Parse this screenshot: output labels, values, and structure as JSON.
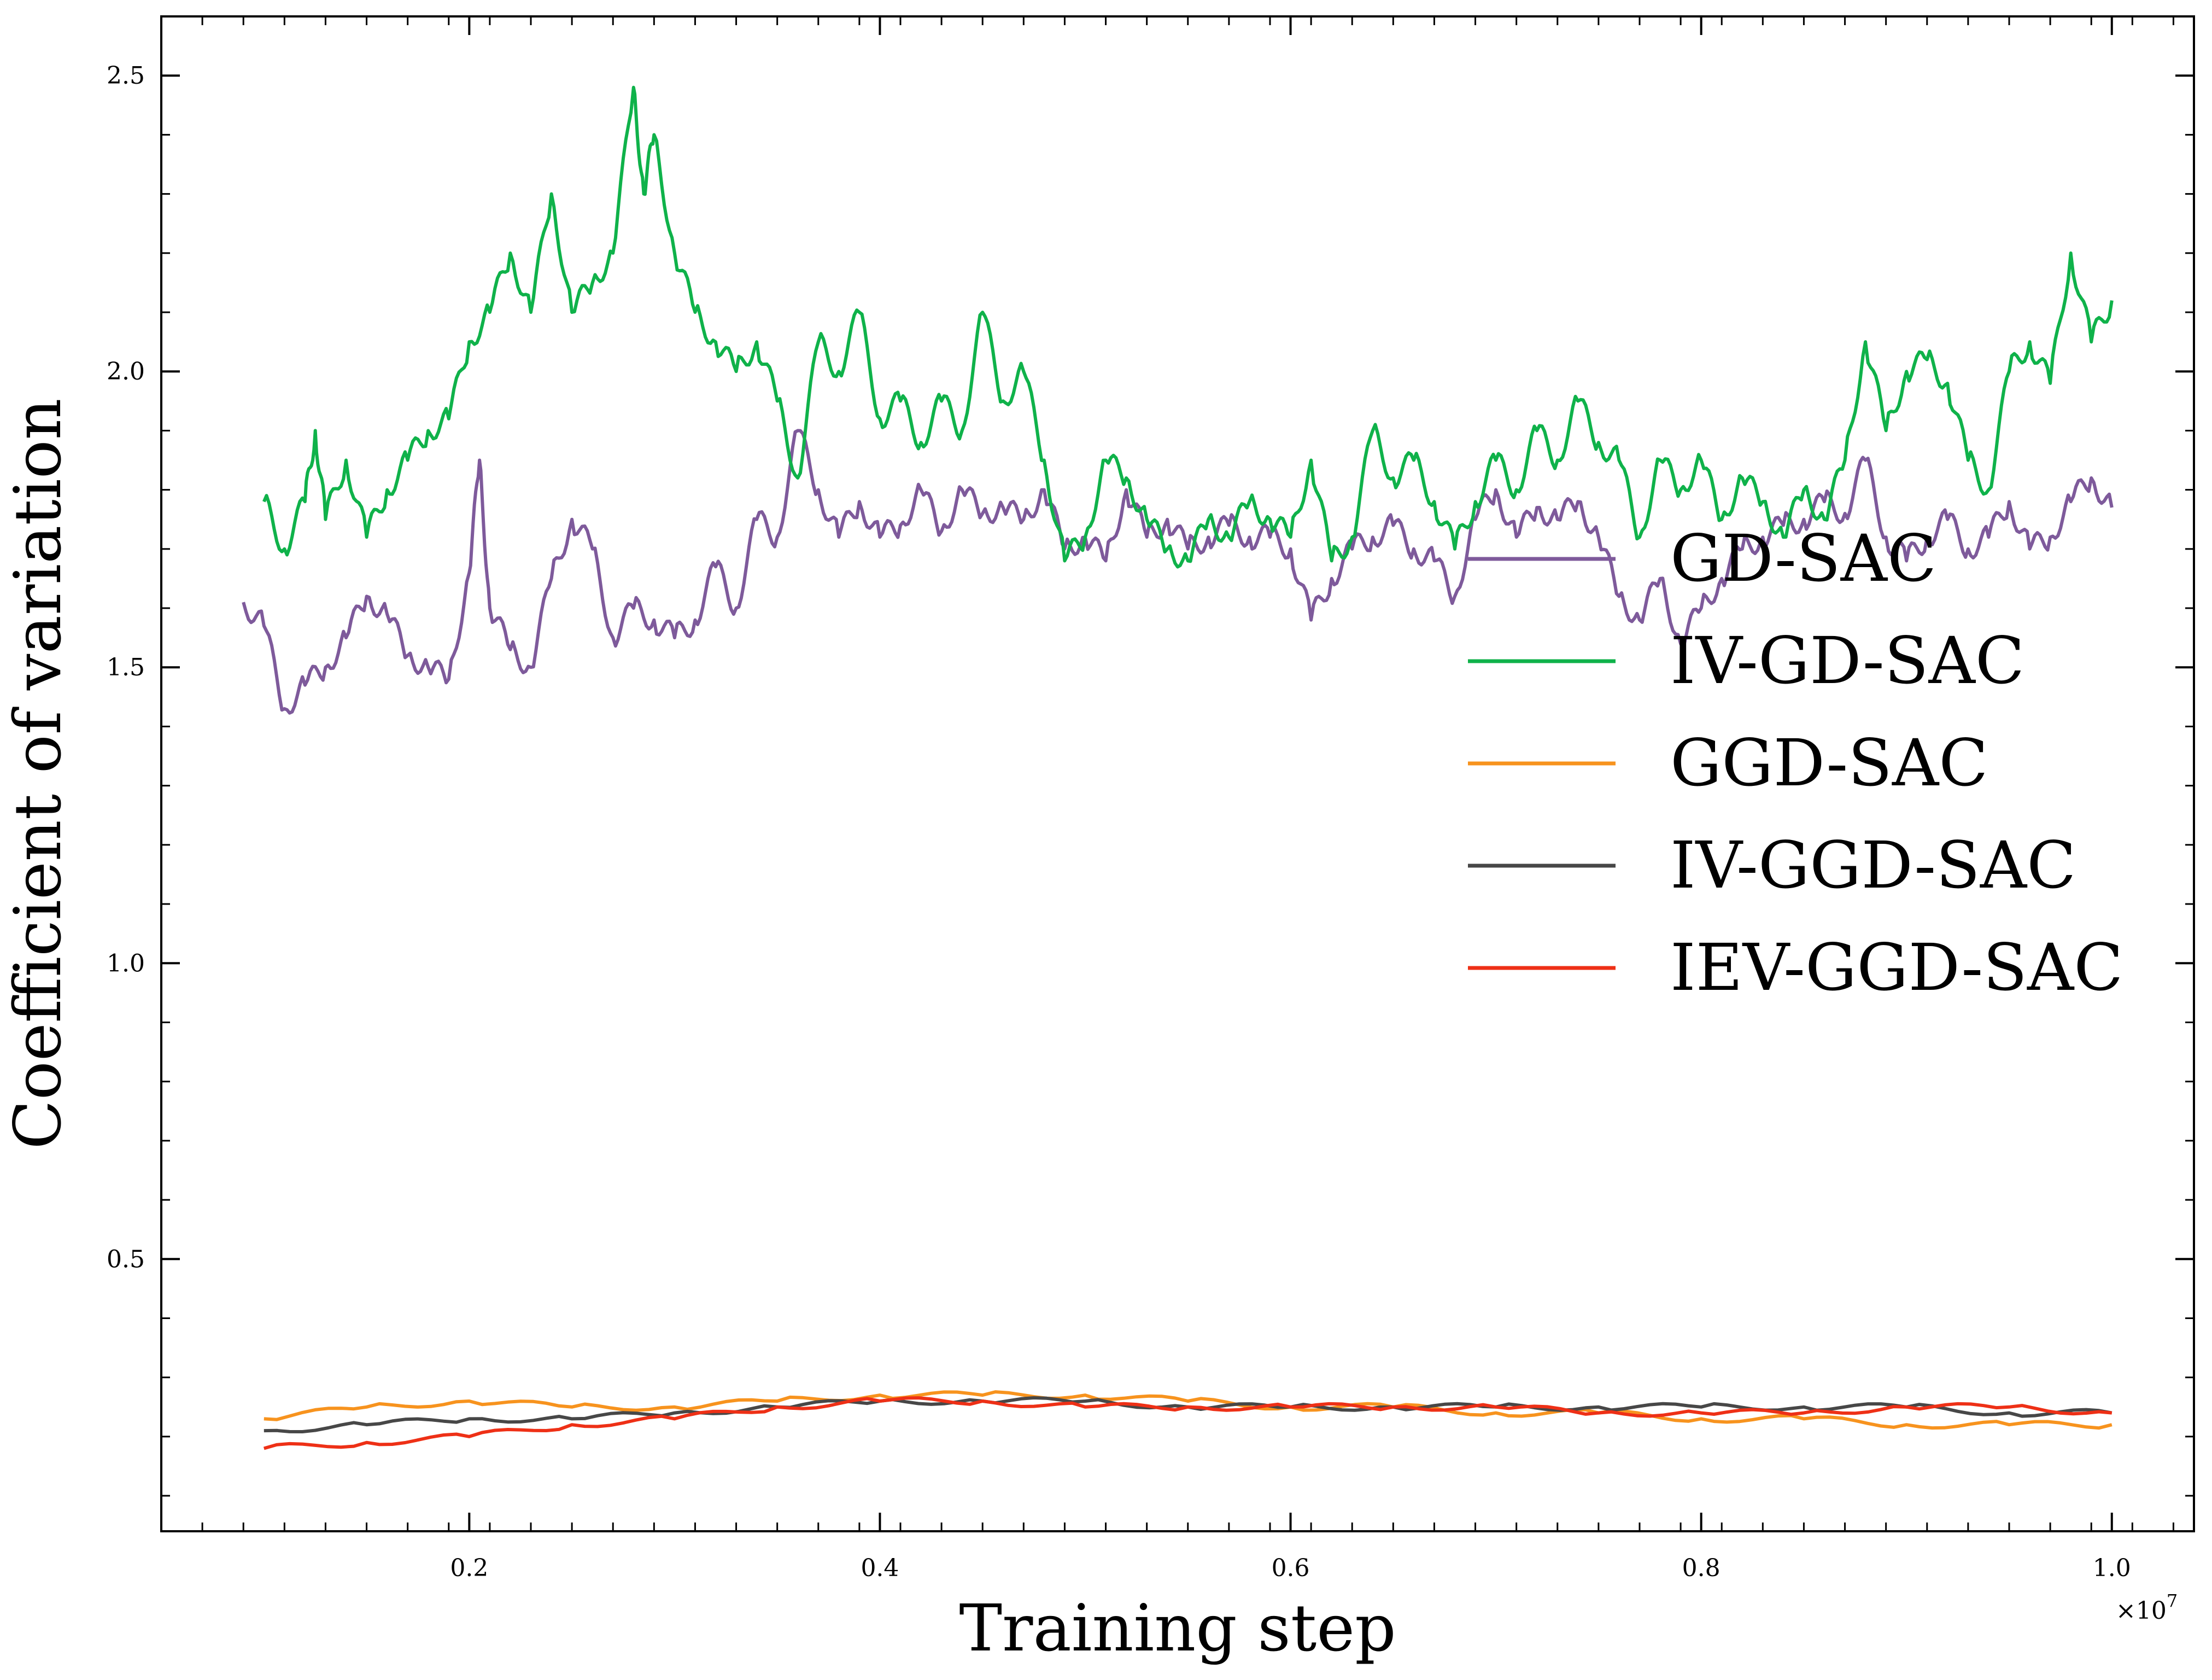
{
  "chart_data": {
    "type": "line",
    "title": "",
    "xlabel": "Training step",
    "ylabel": "Coefficient of variation",
    "x_offset_label": "×10^7",
    "xlim": [
      0.05,
      1.04
    ],
    "ylim": [
      0.04,
      2.6
    ],
    "xticks": [
      {
        "value": 0.2,
        "label": "0.2"
      },
      {
        "value": 0.4,
        "label": "0.4"
      },
      {
        "value": 0.6,
        "label": "0.6"
      },
      {
        "value": 0.8,
        "label": "0.8"
      },
      {
        "value": 1.0,
        "label": "1.0"
      }
    ],
    "yticks": [
      {
        "value": 0.5,
        "label": "0.5"
      },
      {
        "value": 1.0,
        "label": "1.0"
      },
      {
        "value": 1.5,
        "label": "1.5"
      },
      {
        "value": 2.0,
        "label": "2.0"
      },
      {
        "value": 2.5,
        "label": "2.5"
      }
    ],
    "legend_position": "right",
    "series": [
      {
        "name": "GD-SAC",
        "color": "#7e5a9b",
        "x": [
          0.09,
          0.1,
          0.11,
          0.12,
          0.13,
          0.14,
          0.15,
          0.16,
          0.17,
          0.18,
          0.19,
          0.2,
          0.205,
          0.21,
          0.22,
          0.23,
          0.24,
          0.25,
          0.26,
          0.27,
          0.28,
          0.29,
          0.3,
          0.31,
          0.32,
          0.33,
          0.34,
          0.35,
          0.36,
          0.37,
          0.38,
          0.39,
          0.4,
          0.41,
          0.42,
          0.43,
          0.44,
          0.45,
          0.46,
          0.47,
          0.48,
          0.49,
          0.5,
          0.51,
          0.52,
          0.53,
          0.54,
          0.55,
          0.56,
          0.57,
          0.58,
          0.59,
          0.6,
          0.61,
          0.62,
          0.63,
          0.64,
          0.65,
          0.66,
          0.67,
          0.68,
          0.69,
          0.7,
          0.71,
          0.72,
          0.73,
          0.74,
          0.75,
          0.76,
          0.77,
          0.78,
          0.79,
          0.8,
          0.81,
          0.82,
          0.83,
          0.84,
          0.85,
          0.86,
          0.87,
          0.88,
          0.89,
          0.9,
          0.91,
          0.92,
          0.93,
          0.94,
          0.95,
          0.96,
          0.97,
          0.98,
          0.99,
          1.0
        ],
        "values": [
          1.61,
          1.57,
          1.43,
          1.47,
          1.5,
          1.55,
          1.62,
          1.59,
          1.52,
          1.5,
          1.48,
          1.66,
          1.85,
          1.6,
          1.53,
          1.5,
          1.65,
          1.75,
          1.7,
          1.55,
          1.6,
          1.58,
          1.55,
          1.58,
          1.67,
          1.6,
          1.75,
          1.72,
          1.9,
          1.8,
          1.72,
          1.78,
          1.72,
          1.74,
          1.8,
          1.73,
          1.8,
          1.76,
          1.77,
          1.75,
          1.8,
          1.7,
          1.72,
          1.68,
          1.8,
          1.72,
          1.75,
          1.7,
          1.72,
          1.74,
          1.72,
          1.72,
          1.7,
          1.58,
          1.65,
          1.7,
          1.72,
          1.74,
          1.7,
          1.68,
          1.62,
          1.75,
          1.8,
          1.72,
          1.77,
          1.75,
          1.78,
          1.72,
          1.62,
          1.58,
          1.65,
          1.54,
          1.6,
          1.65,
          1.7,
          1.72,
          1.74,
          1.75,
          1.78,
          1.76,
          1.85,
          1.72,
          1.68,
          1.72,
          1.75,
          1.7,
          1.72,
          1.78,
          1.7,
          1.72,
          1.78,
          1.82,
          1.77
        ]
      },
      {
        "name": "IV-GD-SAC",
        "color": "#0fb24a",
        "x": [
          0.1,
          0.11,
          0.12,
          0.125,
          0.13,
          0.14,
          0.15,
          0.16,
          0.17,
          0.18,
          0.19,
          0.2,
          0.21,
          0.22,
          0.23,
          0.24,
          0.25,
          0.26,
          0.27,
          0.28,
          0.285,
          0.29,
          0.3,
          0.31,
          0.32,
          0.33,
          0.34,
          0.35,
          0.36,
          0.37,
          0.38,
          0.39,
          0.4,
          0.41,
          0.42,
          0.43,
          0.44,
          0.45,
          0.46,
          0.47,
          0.48,
          0.49,
          0.5,
          0.51,
          0.52,
          0.53,
          0.54,
          0.55,
          0.56,
          0.57,
          0.58,
          0.59,
          0.6,
          0.61,
          0.62,
          0.63,
          0.64,
          0.65,
          0.66,
          0.67,
          0.68,
          0.69,
          0.7,
          0.71,
          0.72,
          0.73,
          0.74,
          0.75,
          0.76,
          0.77,
          0.78,
          0.79,
          0.8,
          0.81,
          0.82,
          0.83,
          0.84,
          0.85,
          0.86,
          0.87,
          0.88,
          0.89,
          0.9,
          0.91,
          0.92,
          0.93,
          0.94,
          0.95,
          0.96,
          0.97,
          0.98,
          0.99,
          1.0
        ],
        "values": [
          1.78,
          1.7,
          1.78,
          1.9,
          1.75,
          1.85,
          1.72,
          1.8,
          1.85,
          1.9,
          1.92,
          2.05,
          2.1,
          2.2,
          2.1,
          2.3,
          2.1,
          2.15,
          2.2,
          2.48,
          2.3,
          2.4,
          2.2,
          2.1,
          2.05,
          2.0,
          2.05,
          1.95,
          1.82,
          2.05,
          2.0,
          2.1,
          1.92,
          1.95,
          1.88,
          1.95,
          1.9,
          2.1,
          1.95,
          2.0,
          1.85,
          1.68,
          1.72,
          1.85,
          1.82,
          1.75,
          1.7,
          1.68,
          1.75,
          1.72,
          1.78,
          1.75,
          1.72,
          1.85,
          1.68,
          1.72,
          1.9,
          1.82,
          1.85,
          1.78,
          1.7,
          1.78,
          1.85,
          1.8,
          1.9,
          1.85,
          1.95,
          1.88,
          1.85,
          1.72,
          1.85,
          1.8,
          1.85,
          1.75,
          1.82,
          1.78,
          1.72,
          1.8,
          1.75,
          1.85,
          2.05,
          1.9,
          2.0,
          2.02,
          1.98,
          1.85,
          1.8,
          2.0,
          2.05,
          1.98,
          2.2,
          2.05,
          2.12
        ]
      },
      {
        "name": "GGD-SAC",
        "color": "#f7931e",
        "x": [
          0.1,
          0.15,
          0.2,
          0.25,
          0.3,
          0.35,
          0.4,
          0.45,
          0.5,
          0.55,
          0.6,
          0.65,
          0.7,
          0.75,
          0.8,
          0.85,
          0.9,
          0.95,
          1.0
        ],
        "values": [
          0.23,
          0.25,
          0.26,
          0.25,
          0.25,
          0.26,
          0.27,
          0.27,
          0.27,
          0.26,
          0.25,
          0.25,
          0.24,
          0.24,
          0.23,
          0.23,
          0.22,
          0.22,
          0.22
        ]
      },
      {
        "name": "IV-GGD-SAC",
        "color": "#474747",
        "x": [
          0.1,
          0.15,
          0.2,
          0.25,
          0.3,
          0.35,
          0.4,
          0.45,
          0.5,
          0.55,
          0.6,
          0.65,
          0.7,
          0.75,
          0.8,
          0.85,
          0.9,
          0.95,
          1.0
        ],
        "values": [
          0.21,
          0.22,
          0.23,
          0.23,
          0.24,
          0.25,
          0.26,
          0.26,
          0.26,
          0.25,
          0.25,
          0.25,
          0.25,
          0.25,
          0.25,
          0.25,
          0.25,
          0.24,
          0.24
        ]
      },
      {
        "name": "IEV-GGD-SAC",
        "color": "#ee3016",
        "x": [
          0.1,
          0.15,
          0.2,
          0.25,
          0.3,
          0.35,
          0.4,
          0.45,
          0.5,
          0.55,
          0.6,
          0.65,
          0.7,
          0.75,
          0.8,
          0.85,
          0.9,
          0.95,
          1.0
        ],
        "values": [
          0.18,
          0.19,
          0.2,
          0.22,
          0.23,
          0.25,
          0.26,
          0.26,
          0.25,
          0.25,
          0.25,
          0.25,
          0.25,
          0.24,
          0.24,
          0.24,
          0.25,
          0.25,
          0.24
        ]
      }
    ]
  }
}
